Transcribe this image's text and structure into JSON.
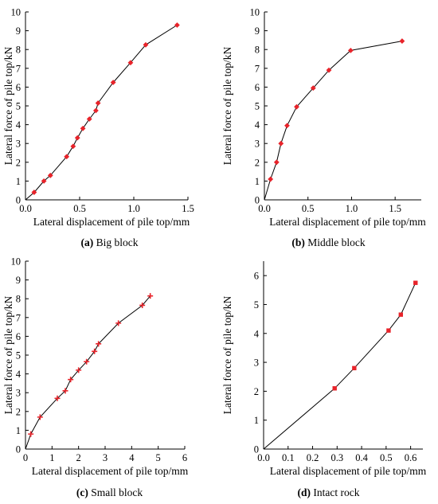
{
  "chart_data": [
    {
      "type": "line",
      "caption_letter": "(a)",
      "caption_text": " Big block",
      "xlabel": "Lateral displacement of pile top/mm",
      "ylabel": "Lateral force of pile top/kN",
      "xlim": [
        0,
        1.5
      ],
      "ylim": [
        0,
        10
      ],
      "xticks": [
        "0.0",
        "0.5",
        "1.0",
        "1.5"
      ],
      "yticks": [
        "0",
        "1",
        "2",
        "3",
        "4",
        "5",
        "6",
        "7",
        "8",
        "9",
        "10"
      ],
      "series": [
        {
          "x": [
            0,
            0.08,
            0.17,
            0.23,
            0.38,
            0.44,
            0.48,
            0.53,
            0.59,
            0.65,
            0.67,
            0.81,
            0.97,
            1.11,
            1.4
          ],
          "y": [
            0,
            0.4,
            1.0,
            1.3,
            2.3,
            2.85,
            3.3,
            3.8,
            4.3,
            4.75,
            5.15,
            6.25,
            7.3,
            8.25,
            9.3
          ],
          "markers": [
            false,
            true,
            true,
            true,
            true,
            true,
            true,
            true,
            true,
            true,
            true,
            true,
            true,
            true,
            true
          ]
        }
      ]
    },
    {
      "type": "line",
      "caption_letter": "(b)",
      "caption_text": " Middle block",
      "xlabel": "Lateral displacement of pile top/mm",
      "ylabel": "Lateral force of pile top/kN",
      "xlim": [
        0,
        1.8
      ],
      "ylim": [
        0,
        10
      ],
      "xticks": [
        "0.0",
        "0.5",
        "1.0",
        "1.5"
      ],
      "yticks": [
        "0",
        "1",
        "2",
        "3",
        "4",
        "5",
        "6",
        "7",
        "8",
        "9",
        "10"
      ],
      "series": [
        {
          "x": [
            0,
            0.07,
            0.14,
            0.19,
            0.26,
            0.37,
            0.56,
            0.74,
            0.99,
            1.58
          ],
          "y": [
            0,
            1.1,
            2.0,
            3.0,
            3.95,
            4.95,
            5.95,
            6.9,
            7.95,
            8.45
          ],
          "markers": [
            false,
            true,
            true,
            true,
            true,
            true,
            true,
            true,
            true,
            true
          ]
        }
      ]
    },
    {
      "type": "line",
      "caption_letter": "(c)",
      "caption_text": " Small block",
      "xlabel": "Lateral displacement of pile top/mm",
      "ylabel": "Lateral force of pile top/kN",
      "xlim": [
        0,
        6
      ],
      "ylim": [
        0,
        10
      ],
      "xticks": [
        "0",
        "1",
        "2",
        "3",
        "4",
        "5",
        "6"
      ],
      "yticks": [
        "0",
        "1",
        "2",
        "3",
        "4",
        "5",
        "6",
        "7",
        "8",
        "9",
        "10"
      ],
      "series": [
        {
          "x": [
            0,
            0.2,
            0.55,
            1.2,
            1.5,
            1.7,
            2.0,
            2.3,
            2.6,
            2.75,
            3.5,
            4.4,
            4.7
          ],
          "y": [
            0,
            0.8,
            1.7,
            2.7,
            3.1,
            3.7,
            4.2,
            4.65,
            5.2,
            5.6,
            6.7,
            7.65,
            8.15
          ],
          "markers": [
            false,
            true,
            true,
            true,
            true,
            true,
            true,
            true,
            true,
            true,
            true,
            true,
            true
          ]
        }
      ]
    },
    {
      "type": "line",
      "caption_letter": "(d)",
      "caption_text": " Intact rock",
      "xlabel": "Lateral displacement of pile top/mm",
      "ylabel": "Lateral force of pile top/kN",
      "xlim": [
        0,
        0.65
      ],
      "ylim": [
        0,
        6.5
      ],
      "xticks": [
        "0.0",
        "0.1",
        "0.2",
        "0.3",
        "0.4",
        "0.5",
        "0.6"
      ],
      "yticks": [
        "0",
        "1",
        "2",
        "3",
        "4",
        "5",
        "6"
      ],
      "series": [
        {
          "x": [
            0,
            0.29,
            0.37,
            0.51,
            0.56,
            0.62
          ],
          "y": [
            0,
            2.1,
            2.8,
            4.1,
            4.65,
            5.75
          ],
          "markers": [
            false,
            true,
            true,
            true,
            true,
            true
          ]
        }
      ]
    }
  ]
}
